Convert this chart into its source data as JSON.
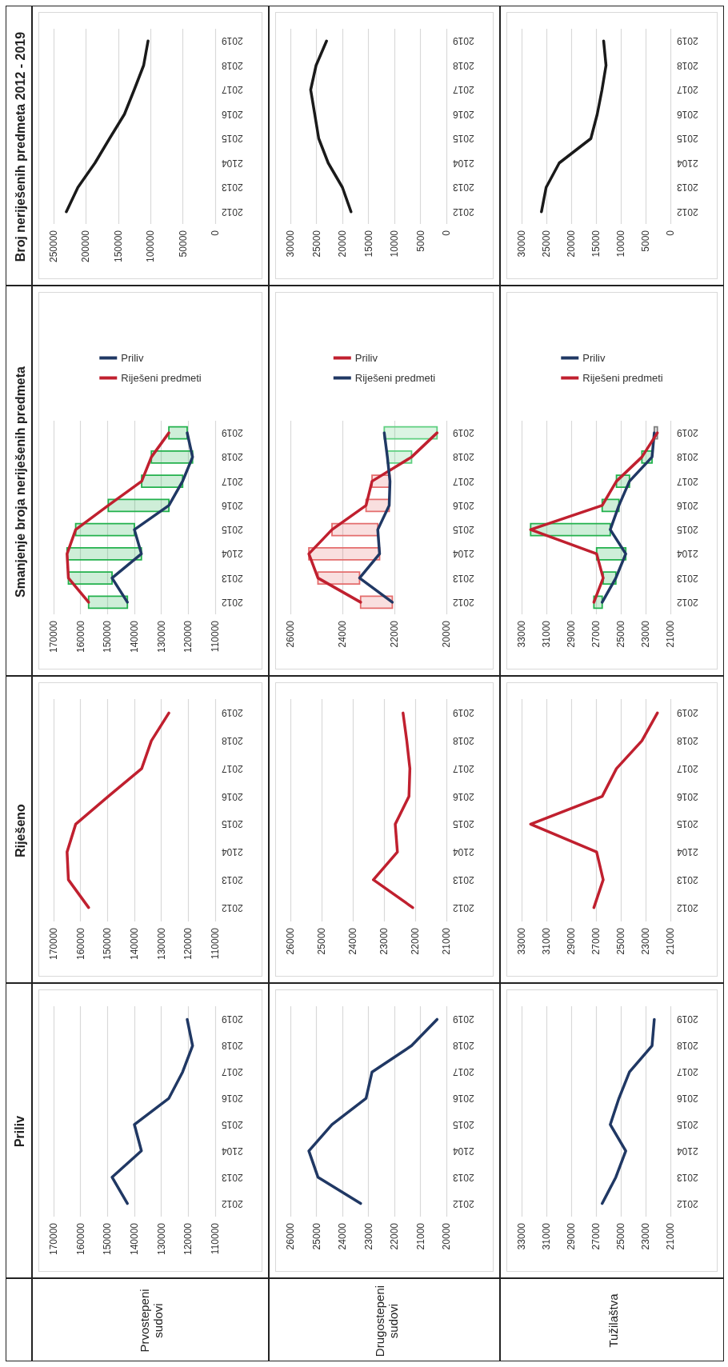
{
  "chart_data": [
    {
      "type": "other",
      "annotations": [
        "Priliv",
        "Riješeno",
        "Smanjenje broja neriješenih predmeta",
        "Broj neriješenih predmeta 2012 - 2019",
        "Prvostepeni sudovi",
        "Drugostepeni sudovi",
        "Tužilaštva"
      ]
    },
    {
      "type": "line",
      "orientation": "horizontal",
      "categories": [
        "2019",
        "2018",
        "2017",
        "2016",
        "2015",
        "2104",
        "2013",
        "2012"
      ],
      "xlim": [
        170000,
        110000
      ],
      "xticks": [
        170000,
        160000,
        150000,
        140000,
        130000,
        120000,
        110000
      ],
      "grid": "x",
      "series": [
        {
          "color": "#203864",
          "values": [
            120400,
            118400,
            122100,
            127200,
            140000,
            137400,
            148300,
            142600
          ]
        }
      ]
    },
    {
      "type": "line",
      "orientation": "horizontal",
      "categories": [
        "2019",
        "2018",
        "2017",
        "2016",
        "2015",
        "2104",
        "2013",
        "2012"
      ],
      "xlim": [
        170000,
        110000
      ],
      "xticks": [
        170000,
        160000,
        150000,
        140000,
        130000,
        120000,
        110000
      ],
      "grid": "x",
      "series": [
        {
          "color": "#c0202f",
          "values": [
            127200,
            133700,
            137300,
            149700,
            161800,
            165000,
            164500,
            157000
          ]
        }
      ]
    },
    {
      "type": "line",
      "orientation": "horizontal",
      "categories": [
        "2019",
        "2018",
        "2017",
        "2016",
        "2015",
        "2104",
        "2013",
        "2012"
      ],
      "xlim": [
        170000,
        110000
      ],
      "xticks": [
        170000,
        160000,
        150000,
        140000,
        130000,
        120000,
        110000
      ],
      "grid": "x",
      "legend": "top",
      "series": [
        {
          "type": "bar",
          "base": [
            120400,
            118400,
            122100,
            127200,
            140000,
            137400,
            148300,
            142600
          ],
          "values": [
            6800,
            15300,
            15200,
            22500,
            21800,
            27600,
            16200,
            14400
          ],
          "colors": [
            "#22b14c",
            "#22b14c",
            "#22b14c",
            "#22b14c",
            "#22b14c",
            "#22b14c",
            "#22b14c",
            "#22b14c"
          ]
        },
        {
          "name": "Priliv",
          "color": "#203864",
          "values": [
            120400,
            118400,
            122100,
            127200,
            140000,
            137400,
            148300,
            142600
          ]
        },
        {
          "name": "Riješeni predmeti",
          "color": "#c0202f",
          "values": [
            127200,
            133700,
            137300,
            149700,
            161800,
            165000,
            164500,
            157000
          ]
        }
      ]
    },
    {
      "type": "line",
      "orientation": "horizontal",
      "categories": [
        "2019",
        "2018",
        "2017",
        "2016",
        "2015",
        "2104",
        "2013",
        "2012"
      ],
      "xlim": [
        250000,
        0
      ],
      "xticks": [
        250000,
        200000,
        150000,
        100000,
        50000,
        0
      ],
      "grid": "x",
      "series": [
        {
          "color": "#1a1a1a",
          "values": [
            103900,
            110700,
            125300,
            140400,
            163500,
            186000,
            212400,
            230300
          ]
        }
      ]
    },
    {
      "type": "line",
      "orientation": "horizontal",
      "categories": [
        "2019",
        "2018",
        "2017",
        "2016",
        "2015",
        "2104",
        "2013",
        "2012"
      ],
      "xlim": [
        26000,
        20000
      ],
      "xticks": [
        26000,
        25000,
        24000,
        23000,
        22000,
        21000,
        20000
      ],
      "grid": "x",
      "series": [
        {
          "color": "#203864",
          "values": [
            20360,
            21340,
            22860,
            23090,
            24400,
            25290,
            24940,
            23300
          ]
        }
      ]
    },
    {
      "type": "line",
      "orientation": "horizontal",
      "categories": [
        "2019",
        "2018",
        "2017",
        "2016",
        "2015",
        "2104",
        "2013",
        "2012"
      ],
      "xlim": [
        26000,
        21000
      ],
      "xticks": [
        26000,
        25000,
        24000,
        23000,
        22000,
        21000
      ],
      "grid": "x",
      "series": [
        {
          "color": "#c0202f",
          "values": [
            22390,
            22270,
            22170,
            22200,
            22640,
            22570,
            23340,
            22080
          ]
        }
      ]
    },
    {
      "type": "line",
      "orientation": "horizontal",
      "categories": [
        "2019",
        "2018",
        "2017",
        "2016",
        "2015",
        "2104",
        "2013",
        "2012"
      ],
      "xlim": [
        26000,
        20000
      ],
      "xticks": [
        26000,
        24000,
        22000,
        20000
      ],
      "grid": "x",
      "legend": "top",
      "series": [
        {
          "type": "bar",
          "base": [
            20360,
            21340,
            22170,
            22200,
            22640,
            22570,
            23340,
            22080
          ],
          "values": [
            2030,
            930,
            690,
            890,
            1760,
            2720,
            1600,
            1220
          ],
          "colors": [
            "#5fcf80",
            "#5fcf80",
            "#e46c6c",
            "#e46c6c",
            "#e46c6c",
            "#e46c6c",
            "#e46c6c",
            "#e46c6c"
          ]
        },
        {
          "name": "Priliv",
          "color": "#c0202f",
          "values": [
            20360,
            21340,
            22860,
            23090,
            24400,
            25290,
            24940,
            23300
          ]
        },
        {
          "name": "Riješeni predmeti",
          "color": "#203864",
          "values": [
            22390,
            22270,
            22170,
            22200,
            22640,
            22570,
            23340,
            22080
          ]
        }
      ]
    },
    {
      "type": "line",
      "orientation": "horizontal",
      "categories": [
        "2019",
        "2018",
        "2017",
        "2016",
        "2015",
        "2104",
        "2013",
        "2012"
      ],
      "xlim": [
        30000,
        0
      ],
      "xticks": [
        30000,
        25000,
        20000,
        15000,
        10000,
        5000,
        0
      ],
      "grid": "x",
      "series": [
        {
          "color": "#1a1a1a",
          "values": [
            23050,
            25060,
            26100,
            25320,
            24550,
            22730,
            20000,
            18340
          ]
        }
      ]
    },
    {
      "type": "line",
      "orientation": "horizontal",
      "categories": [
        "2019",
        "2018",
        "2017",
        "2016",
        "2015",
        "2104",
        "2013",
        "2012"
      ],
      "xlim": [
        33000,
        21000
      ],
      "xticks": [
        33000,
        31000,
        29000,
        27000,
        25000,
        23000,
        21000
      ],
      "grid": "x",
      "series": [
        {
          "color": "#203864",
          "values": [
            22300,
            22480,
            24300,
            25150,
            25850,
            24600,
            25400,
            26500
          ]
        }
      ]
    },
    {
      "type": "line",
      "orientation": "horizontal",
      "categories": [
        "2019",
        "2018",
        "2017",
        "2016",
        "2015",
        "2104",
        "2013",
        "2012"
      ],
      "xlim": [
        33000,
        21000
      ],
      "xticks": [
        33000,
        31000,
        29000,
        27000,
        25000,
        23000,
        21000
      ],
      "grid": "x",
      "series": [
        {
          "color": "#c0202f",
          "values": [
            22050,
            23300,
            25350,
            26500,
            32270,
            26950,
            26420,
            27170
          ]
        }
      ]
    },
    {
      "type": "line",
      "orientation": "horizontal",
      "categories": [
        "2019",
        "2018",
        "2017",
        "2016",
        "2015",
        "2104",
        "2013",
        "2012"
      ],
      "xlim": [
        33000,
        21000
      ],
      "xticks": [
        33000,
        31000,
        29000,
        27000,
        25000,
        23000,
        21000
      ],
      "grid": "x",
      "legend": "top",
      "series": [
        {
          "type": "bar",
          "base": [
            22050,
            22480,
            24300,
            25150,
            25850,
            24600,
            25400,
            26500
          ],
          "values": [
            250,
            820,
            1050,
            1350,
            6420,
            2350,
            1020,
            670
          ],
          "colors": [
            "#7f7f7f",
            "#22b14c",
            "#22b14c",
            "#22b14c",
            "#22b14c",
            "#22b14c",
            "#22b14c",
            "#22b14c"
          ]
        },
        {
          "name": "Priliv",
          "color": "#203864",
          "values": [
            22300,
            22480,
            24300,
            25150,
            25850,
            24600,
            25400,
            26500
          ]
        },
        {
          "name": "Riješeni predmeti",
          "color": "#c0202f",
          "values": [
            22050,
            23300,
            25350,
            26500,
            32270,
            26950,
            26420,
            27170
          ]
        }
      ]
    },
    {
      "type": "line",
      "orientation": "horizontal",
      "categories": [
        "2019",
        "2018",
        "2017",
        "2016",
        "2015",
        "2104",
        "2013",
        "2012"
      ],
      "xlim": [
        30000,
        0
      ],
      "xticks": [
        30000,
        25000,
        20000,
        15000,
        10000,
        5000,
        0
      ],
      "grid": "x",
      "series": [
        {
          "color": "#1a1a1a",
          "values": [
            13460,
            12980,
            13790,
            14750,
            16040,
            22410,
            25050,
            26000
          ]
        }
      ]
    }
  ]
}
